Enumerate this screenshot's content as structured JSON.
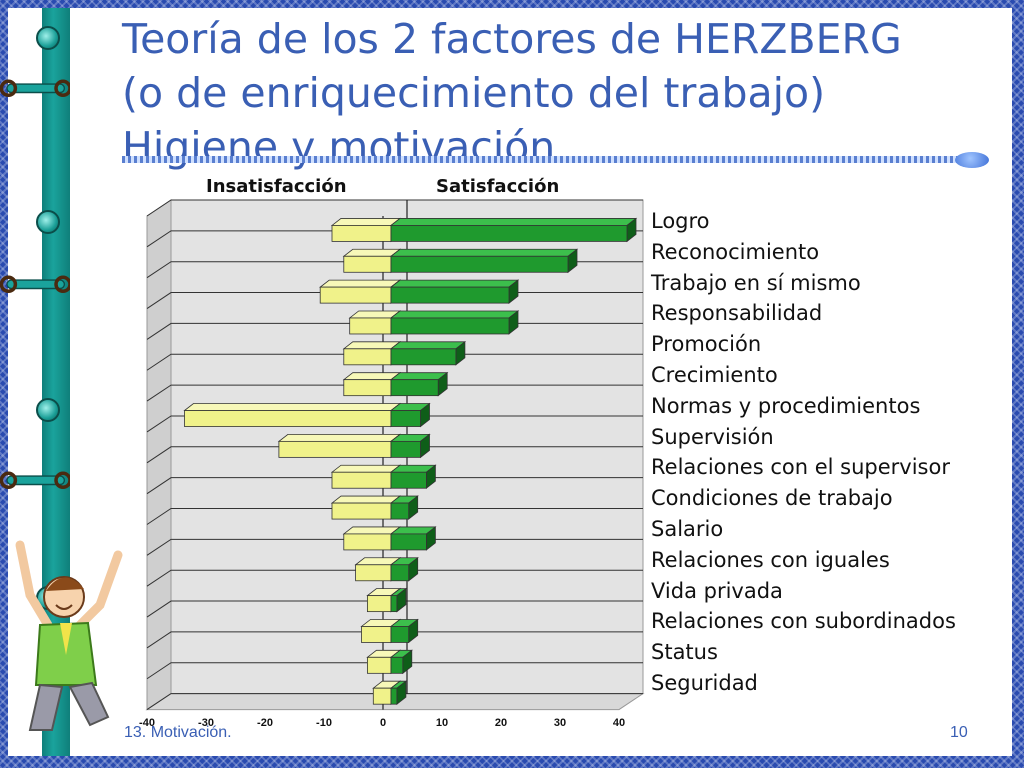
{
  "slide": {
    "title": "Teoría de los 2 factores de HERZBERG\n(o de enriquecimiento del trabajo)\nHigiene y motivación",
    "footer_left": "13. Motivación.",
    "page_number": "10"
  },
  "chart_data": {
    "type": "bar",
    "orientation": "horizontal",
    "title": "",
    "column_headers": [
      "Insatisfacción",
      "Satisfacción"
    ],
    "categories": [
      "Logro",
      "Reconocimiento",
      "Trabajo en sí mismo",
      "Responsabilidad",
      "Promoción",
      "Crecimiento",
      "Normas y procedimientos",
      "Supervisión",
      "Relaciones con el supervisor",
      "Condiciones de trabajo",
      "Salario",
      "Relaciones con iguales",
      "Vida privada",
      "Relaciones con subordinados",
      "Status",
      "Seguridad"
    ],
    "series": [
      {
        "name": "Insatisfacción",
        "values": [
          -10,
          -8,
          -12,
          -7,
          -8,
          -8,
          -35,
          -19,
          -10,
          -10,
          -8,
          -6,
          -4,
          -5,
          -4,
          -3
        ]
      },
      {
        "name": "Satisfacción",
        "values": [
          40,
          30,
          20,
          20,
          11,
          8,
          5,
          5,
          6,
          3,
          6,
          3,
          1,
          3,
          2,
          1
        ]
      }
    ],
    "xticks": [
      -40,
      -30,
      -20,
      -10,
      0,
      10,
      20,
      30,
      40
    ],
    "xlim": [
      -40,
      40
    ],
    "colors": {
      "negative": "#f0f28a",
      "negative_side": "#b9bb4e",
      "positive": "#1f9a2e",
      "positive_side": "#0f5e19",
      "plot_bg": "#e3e3e3",
      "grid": "#333333"
    },
    "grid": true
  }
}
